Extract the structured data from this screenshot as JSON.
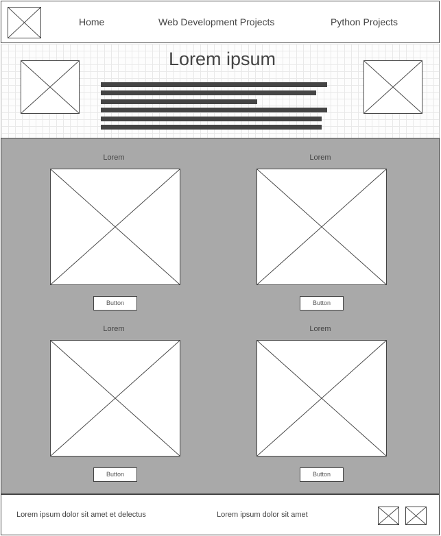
{
  "nav": {
    "links": [
      "Home",
      "Web Development Projects",
      "Python Projects"
    ]
  },
  "hero": {
    "title": "Lorem ipsum"
  },
  "cards": [
    {
      "title": "Lorem",
      "button": "Button"
    },
    {
      "title": "Lorem",
      "button": "Button"
    },
    {
      "title": "Lorem",
      "button": "Button"
    },
    {
      "title": "Lorem",
      "button": "Button"
    }
  ],
  "footer": {
    "text_left": "Lorem ipsum dolor sit amet et delectus",
    "text_right": "Lorem ipsum dolor sit amet"
  },
  "colors": {
    "main_background": "#a9a9a9",
    "wire": "#444444"
  }
}
